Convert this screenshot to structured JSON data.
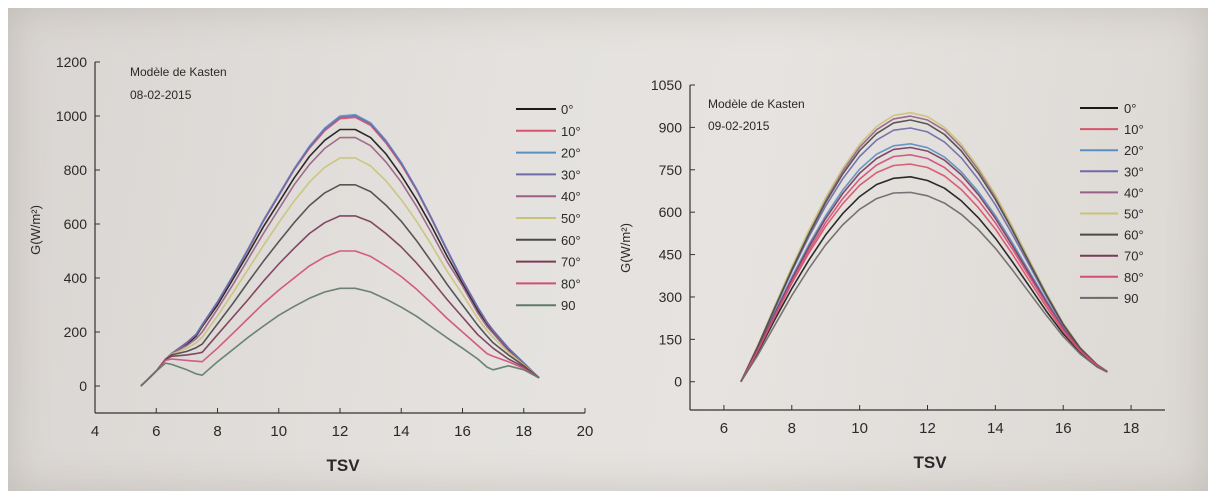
{
  "chart_data": [
    {
      "type": "line",
      "annotation_line1": "Modèle de Kasten",
      "annotation_line2": "08-02-2015",
      "xlabel": "TSV",
      "ylabel": "G(W/m²)",
      "xlim": [
        4,
        20
      ],
      "ylim": [
        -100,
        1200
      ],
      "xticks": [
        4,
        6,
        8,
        10,
        12,
        14,
        16,
        18,
        20
      ],
      "yticks": [
        0,
        200,
        400,
        600,
        800,
        1000,
        1200
      ],
      "legend_position": "top-right",
      "x": [
        5.5,
        6.0,
        6.3,
        6.5,
        7.0,
        7.3,
        7.5,
        8.0,
        8.5,
        9.0,
        9.5,
        10.0,
        10.5,
        11.0,
        11.5,
        12.0,
        12.5,
        13.0,
        13.5,
        14.0,
        14.5,
        15.0,
        15.5,
        16.0,
        16.5,
        16.8,
        17.0,
        17.5,
        18.0,
        18.5
      ],
      "series": [
        {
          "name": "0°",
          "color": "#1a1a1a",
          "values": [
            0,
            55,
            98,
            120,
            155,
            185,
            220,
            300,
            395,
            490,
            590,
            680,
            770,
            850,
            910,
            950,
            950,
            920,
            860,
            780,
            690,
            590,
            480,
            380,
            280,
            230,
            200,
            135,
            80,
            30
          ]
        },
        {
          "name": "10°",
          "color": "#d9536a",
          "values": [
            0,
            55,
            98,
            120,
            160,
            190,
            225,
            310,
            405,
            505,
            610,
            705,
            800,
            880,
            945,
            990,
            995,
            965,
            900,
            820,
            725,
            615,
            500,
            390,
            290,
            235,
            205,
            140,
            85,
            30
          ]
        },
        {
          "name": "20°",
          "color": "#5a8fc4",
          "values": [
            0,
            55,
            98,
            120,
            162,
            192,
            228,
            312,
            408,
            508,
            614,
            710,
            805,
            888,
            955,
            1000,
            1005,
            975,
            910,
            828,
            730,
            620,
            505,
            393,
            292,
            237,
            207,
            141,
            86,
            30
          ]
        },
        {
          "name": "30°",
          "color": "#6f6aa8",
          "values": [
            0,
            55,
            98,
            120,
            161,
            191,
            226,
            311,
            406,
            506,
            612,
            707,
            802,
            884,
            950,
            995,
            1000,
            970,
            905,
            824,
            727,
            617,
            502,
            391,
            291,
            236,
            206,
            140,
            85,
            30
          ]
        },
        {
          "name": "40°",
          "color": "#9a5f86",
          "values": [
            0,
            55,
            98,
            120,
            150,
            175,
            200,
            285,
            375,
            470,
            565,
            655,
            745,
            820,
            880,
            920,
            920,
            890,
            830,
            755,
            665,
            565,
            460,
            370,
            270,
            220,
            195,
            130,
            80,
            30
          ]
        },
        {
          "name": "50°",
          "color": "#c9c37a",
          "values": [
            0,
            55,
            98,
            118,
            140,
            160,
            180,
            260,
            345,
            432,
            520,
            605,
            685,
            755,
            810,
            845,
            845,
            815,
            760,
            690,
            610,
            520,
            425,
            340,
            250,
            205,
            180,
            125,
            78,
            30
          ]
        },
        {
          "name": "60°",
          "color": "#4a4a4a",
          "values": [
            0,
            55,
            98,
            115,
            128,
            142,
            155,
            230,
            305,
            385,
            462,
            535,
            605,
            668,
            715,
            745,
            745,
            720,
            670,
            610,
            538,
            458,
            376,
            300,
            225,
            185,
            160,
            115,
            75,
            30
          ]
        },
        {
          "name": "70°",
          "color": "#7a3a58",
          "values": [
            0,
            55,
            98,
            110,
            115,
            120,
            125,
            190,
            255,
            320,
            388,
            452,
            510,
            565,
            605,
            630,
            630,
            608,
            565,
            515,
            455,
            390,
            320,
            255,
            190,
            160,
            140,
            100,
            70,
            30
          ]
        },
        {
          "name": "80°",
          "color": "#d14f7a",
          "values": [
            0,
            55,
            95,
            100,
            95,
            92,
            90,
            140,
            195,
            250,
            305,
            355,
            400,
            445,
            478,
            500,
            500,
            480,
            445,
            405,
            358,
            305,
            250,
            200,
            150,
            120,
            110,
            90,
            65,
            30
          ]
        },
        {
          "name": "90",
          "color": "#5f7a6a",
          "values": [
            0,
            55,
            85,
            80,
            60,
            45,
            40,
            90,
            135,
            180,
            222,
            262,
            295,
            325,
            348,
            362,
            362,
            348,
            322,
            292,
            258,
            218,
            178,
            140,
            100,
            70,
            60,
            75,
            60,
            30
          ]
        }
      ]
    },
    {
      "type": "line",
      "annotation_line1": "Modèle de Kasten",
      "annotation_line2": "09-02-2015",
      "xlabel": "TSV",
      "ylabel": "G(W/m²)",
      "xlim": [
        5,
        19
      ],
      "ylim": [
        -100,
        1050
      ],
      "xticks": [
        6,
        8,
        10,
        12,
        14,
        16,
        18
      ],
      "yticks": [
        0,
        150,
        300,
        450,
        600,
        750,
        900,
        1050
      ],
      "legend_position": "top-right",
      "x": [
        6.5,
        7.0,
        7.5,
        8.0,
        8.5,
        9.0,
        9.5,
        10.0,
        10.5,
        11.0,
        11.5,
        12.0,
        12.5,
        13.0,
        13.5,
        14.0,
        14.5,
        15.0,
        15.5,
        16.0,
        16.5,
        17.0,
        17.3
      ],
      "series": [
        {
          "name": "0°",
          "color": "#1a1a1a",
          "values": [
            0,
            105,
            220,
            330,
            430,
            520,
            595,
            655,
            698,
            720,
            725,
            712,
            685,
            640,
            580,
            508,
            425,
            338,
            250,
            170,
            105,
            55,
            35
          ]
        },
        {
          "name": "10°",
          "color": "#d9536a",
          "values": [
            0,
            110,
            230,
            348,
            455,
            550,
            630,
            695,
            740,
            765,
            770,
            758,
            728,
            680,
            616,
            540,
            452,
            358,
            265,
            178,
            108,
            56,
            35
          ]
        },
        {
          "name": "20°",
          "color": "#5a8fc4",
          "values": [
            0,
            118,
            245,
            370,
            485,
            588,
            678,
            752,
            805,
            835,
            842,
            828,
            795,
            742,
            672,
            588,
            492,
            390,
            288,
            192,
            115,
            58,
            36
          ]
        },
        {
          "name": "30°",
          "color": "#6f6aa8",
          "values": [
            0,
            124,
            258,
            390,
            512,
            622,
            718,
            797,
            855,
            890,
            898,
            884,
            848,
            792,
            716,
            626,
            522,
            412,
            302,
            200,
            118,
            60,
            36
          ]
        },
        {
          "name": "40°",
          "color": "#9a5f86",
          "values": [
            0,
            128,
            266,
            402,
            530,
            645,
            746,
            830,
            892,
            930,
            940,
            926,
            890,
            830,
            750,
            655,
            545,
            428,
            312,
            206,
            120,
            60,
            36
          ]
        },
        {
          "name": "50°",
          "color": "#c9c37a",
          "values": [
            0,
            129,
            268,
            406,
            535,
            652,
            755,
            840,
            903,
            942,
            952,
            938,
            900,
            840,
            758,
            662,
            550,
            432,
            314,
            207,
            121,
            60,
            36
          ]
        },
        {
          "name": "60°",
          "color": "#4a4a4a",
          "values": [
            0,
            126,
            262,
            396,
            522,
            635,
            735,
            818,
            878,
            916,
            926,
            912,
            875,
            816,
            738,
            645,
            537,
            422,
            308,
            203,
            119,
            60,
            36
          ]
        },
        {
          "name": "70°",
          "color": "#7a3a58",
          "values": [
            0,
            115,
            240,
            362,
            476,
            578,
            666,
            738,
            790,
            822,
            829,
            816,
            784,
            732,
            662,
            578,
            482,
            382,
            282,
            188,
            113,
            58,
            35
          ]
        },
        {
          "name": "80°",
          "color": "#d14f7a",
          "values": [
            0,
            112,
            234,
            354,
            465,
            563,
            648,
            717,
            767,
            797,
            803,
            790,
            758,
            708,
            642,
            562,
            470,
            372,
            276,
            184,
            111,
            57,
            35
          ]
        },
        {
          "name": "90",
          "color": "#6a6a6a",
          "values": [
            0,
            95,
            200,
            305,
            400,
            485,
            555,
            610,
            648,
            668,
            670,
            658,
            632,
            592,
            538,
            472,
            396,
            315,
            235,
            160,
            98,
            52,
            34
          ]
        }
      ]
    }
  ]
}
